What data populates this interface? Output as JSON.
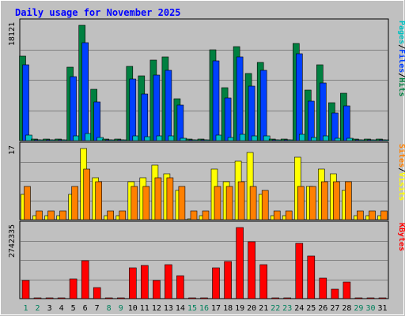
{
  "chart_data": {
    "type": "bar",
    "title": "Daily usage for November 2025",
    "days": [
      "1",
      "2",
      "3",
      "4",
      "5",
      "6",
      "7",
      "8",
      "9",
      "10",
      "11",
      "12",
      "13",
      "14",
      "15",
      "16",
      "17",
      "18",
      "19",
      "20",
      "21",
      "22",
      "23",
      "24",
      "25",
      "26",
      "27",
      "28",
      "29",
      "30",
      "31"
    ],
    "weekend_days": [
      "1",
      "2",
      "8",
      "9",
      "15",
      "16",
      "22",
      "23",
      "29",
      "30"
    ],
    "panels": [
      {
        "name": "hits-files-pages",
        "axis_max_label": "18121",
        "ymax": 18121,
        "legend": [
          "Pages",
          "Files",
          "Hits"
        ],
        "series": [
          {
            "name": "Hits",
            "values": [
              13300,
              250,
              250,
              250,
              11500,
              18121,
              8100,
              250,
              250,
              11700,
              10200,
              12700,
              13200,
              6600,
              250,
              250,
              14300,
              8300,
              14800,
              10500,
              12300,
              250,
              250,
              15300,
              7900,
              11900,
              6000,
              7400,
              250,
              250,
              250
            ]
          },
          {
            "name": "Files",
            "values": [
              11900,
              150,
              150,
              150,
              10000,
              15400,
              6100,
              150,
              150,
              9700,
              7300,
              10300,
              11000,
              5600,
              150,
              150,
              12500,
              6700,
              13200,
              8600,
              11000,
              150,
              150,
              13600,
              6200,
              9000,
              4400,
              5500,
              150,
              150,
              150
            ]
          },
          {
            "name": "Pages",
            "values": [
              900,
              100,
              100,
              100,
              800,
              1100,
              500,
              100,
              100,
              700,
              600,
              800,
              800,
              400,
              100,
              100,
              900,
              500,
              1000,
              700,
              800,
              100,
              100,
              1000,
              500,
              700,
              400,
              400,
              100,
              100,
              100
            ]
          }
        ]
      },
      {
        "name": "visits-sites",
        "axis_max_label": "17",
        "ymax": 17,
        "legend": [
          "Sites",
          "Visits"
        ],
        "series": [
          {
            "name": "Visits",
            "values": [
              6,
              1,
              1,
              1,
              6,
              17,
              10,
              1,
              1,
              9,
              10,
              13,
              11,
              7,
              0,
              1,
              12,
              9,
              14,
              16,
              6,
              1,
              1,
              15,
              8,
              12,
              11,
              7,
              1,
              1,
              1
            ]
          },
          {
            "name": "Sites",
            "values": [
              8,
              2,
              2,
              2,
              8,
              12,
              9,
              2,
              2,
              8,
              8,
              10,
              10,
              8,
              2,
              2,
              8,
              8,
              9,
              8,
              7,
              2,
              2,
              8,
              8,
              9,
              9,
              9,
              2,
              2,
              2
            ]
          }
        ]
      },
      {
        "name": "kbytes",
        "axis_max_label": "2742335",
        "ymax": 2742335,
        "legend": [
          "KBytes"
        ],
        "series": [
          {
            "name": "KBytes",
            "values": [
              700000,
              10000,
              10000,
              10000,
              760000,
              1450000,
              440000,
              10000,
              10000,
              1180000,
              1280000,
              700000,
              1320000,
              870000,
              10000,
              10000,
              1200000,
              1430000,
              2742335,
              2200000,
              1320000,
              10000,
              10000,
              2130000,
              1650000,
              800000,
              360000,
              650000,
              10000,
              10000,
              10000
            ]
          }
        ]
      }
    ],
    "colors": {
      "Hits": "#008040",
      "Files": "#0040ff",
      "Pages": "#00c0c0",
      "Visits": "#ffff00",
      "Sites": "#ff8000",
      "KBytes": "#ff0000",
      "title": "#0000ff",
      "weekday_label": "#000000",
      "weekend_label": "#00805c"
    }
  }
}
